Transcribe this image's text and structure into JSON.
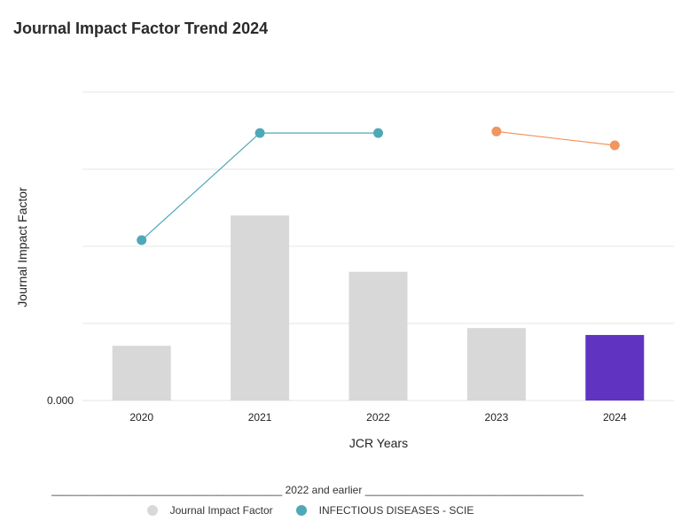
{
  "title": "Journal Impact Factor Trend 2024",
  "chart_data": {
    "type": "bar",
    "title": "Journal Impact Factor Trend 2024",
    "xlabel": "JCR Years",
    "ylabel": "Journal Impact Factor",
    "y_tick_labels": [
      "0.000"
    ],
    "ylim": [
      0,
      4
    ],
    "grid": true,
    "categories": [
      "2020",
      "2021",
      "2022",
      "2023",
      "2024"
    ],
    "bars": {
      "name": "Journal Impact Factor",
      "values": [
        0.71,
        2.4,
        1.67,
        0.94,
        0.85
      ],
      "colors": [
        "#d8d8d8",
        "#d8d8d8",
        "#d8d8d8",
        "#d8d8d8",
        "#6033c0"
      ]
    },
    "lines": [
      {
        "name": "INFECTIOUS DISEASES - SCIE",
        "categories": [
          "2020",
          "2021",
          "2022"
        ],
        "values": [
          2.08,
          3.47,
          3.47
        ],
        "color": "#4fa8b8"
      },
      {
        "categories": [
          "2023",
          "2024"
        ],
        "values": [
          3.49,
          3.31
        ],
        "color": "#f0965e"
      }
    ],
    "legend": {
      "placement": "bottom",
      "heading": "2022 and earlier",
      "entries": [
        {
          "label": "Journal Impact Factor",
          "color": "#d8d8d8"
        },
        {
          "label": "INFECTIOUS DISEASES - SCIE",
          "color": "#4fa8b8"
        }
      ]
    }
  }
}
